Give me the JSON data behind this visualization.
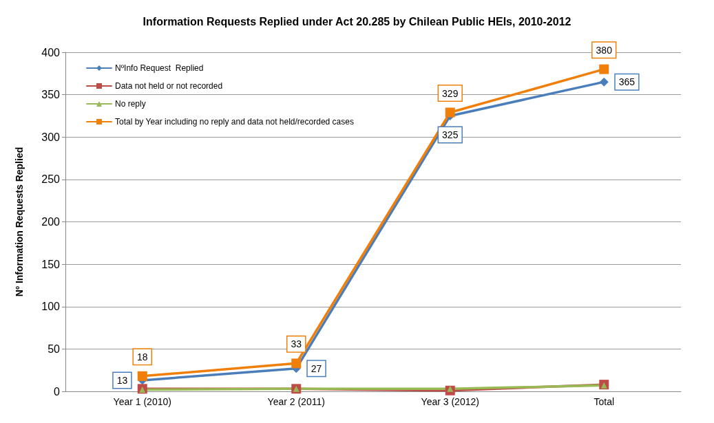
{
  "chart_data": {
    "type": "line",
    "title": "Information Requests Replied under Act 20.285 by Chilean Public HEIs, 2010-2012",
    "ylabel": "Nº Information Requests Replied",
    "categories": [
      "Year 1 (2010)",
      "Year 2 (2011)",
      "Year 3 (2012)",
      "Total"
    ],
    "ylim": [
      0,
      400
    ],
    "yticks": [
      0,
      50,
      100,
      150,
      200,
      250,
      300,
      350,
      400
    ],
    "grid": "y",
    "legend": "top left",
    "series": [
      {
        "name": "NºInfo Request  Replied",
        "color": "#4a7ebb",
        "marker": "diamond",
        "values": [
          13,
          27,
          325,
          365
        ],
        "value_labels": [
          "13",
          "27",
          "325",
          "365"
        ]
      },
      {
        "name": "Data not held or not recorded",
        "color": "#be4b48",
        "marker": "square",
        "values": [
          3,
          3,
          1,
          8
        ]
      },
      {
        "name": "No reply",
        "color": "#98b954",
        "marker": "triangle",
        "values": [
          2,
          3,
          3,
          7
        ]
      },
      {
        "name": "Total by Year including no reply and data not held/recorded cases",
        "color": "#f07f09",
        "marker": "square",
        "values": [
          18,
          33,
          329,
          380
        ],
        "value_labels": [
          "18",
          "33",
          "329",
          "380"
        ]
      }
    ]
  }
}
